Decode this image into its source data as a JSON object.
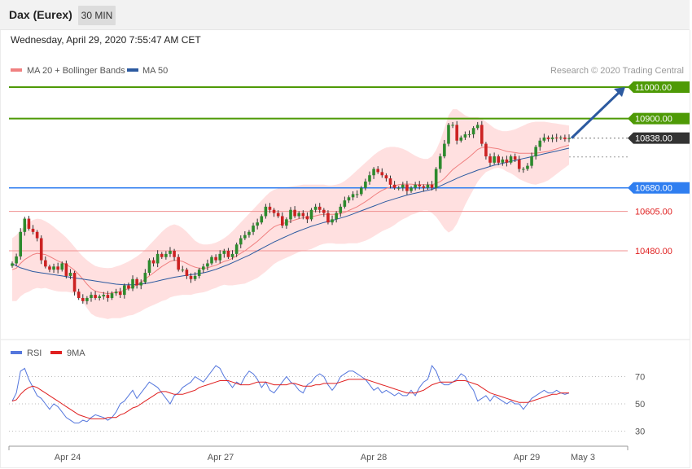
{
  "header": {
    "title": "Dax (Eurex)",
    "timeframe": "30 MIN"
  },
  "date_text": "Wednesday, April 29, 2020 7:55:47 AM CET",
  "legend": {
    "ma20": "MA 20 + Bollinger Bands",
    "ma50": "MA 50"
  },
  "credit": "Research © 2020 Trading Central",
  "rsi_legend": {
    "rsi": "RSI",
    "ma9": "9MA"
  },
  "colors": {
    "green": "#4e9a06",
    "blue": "#2f7ef0",
    "red": "#e02020",
    "up": "#2d8a2d",
    "down": "#cc2222",
    "band": "#ffd6d6",
    "ma20": "#f08080",
    "ma50": "#2c5aa0",
    "rsi": "#5577dd",
    "rsi_ma": "#e02020",
    "arrow": "#2c5aa0"
  },
  "chart_data": {
    "type": "candlestick",
    "title": "Dax (Eurex)",
    "timeframe": "30 MIN",
    "price_axis": [
      10400,
      11050
    ],
    "x_labels": [
      "Apr 24",
      "Apr 27",
      "Apr 28",
      "Apr 29",
      "May 3"
    ],
    "current_price": "10838.00",
    "levels": [
      {
        "label": "11000.00",
        "value": 11000,
        "style": "green-line"
      },
      {
        "label": "10900.00",
        "value": 10900,
        "style": "green-line"
      },
      {
        "label": "10838.00",
        "value": 10838,
        "style": "current-dotted"
      },
      {
        "label": "10680.00",
        "value": 10680,
        "style": "blue-line"
      },
      {
        "label": "10605.00",
        "value": 10605,
        "style": "red-line"
      },
      {
        "label": "10480.00",
        "value": 10480,
        "style": "red-line"
      }
    ],
    "projection": {
      "from": 10838,
      "to": 11000,
      "direction": "up"
    },
    "close_series": [
      10440,
      10462,
      10540,
      10582,
      10550,
      10540,
      10520,
      10450,
      10430,
      10420,
      10430,
      10420,
      10440,
      10400,
      10410,
      10350,
      10330,
      10320,
      10330,
      10340,
      10330,
      10335,
      10340,
      10330,
      10345,
      10350,
      10340,
      10370,
      10360,
      10390,
      10370,
      10380,
      10410,
      10450,
      10440,
      10470,
      10460,
      10470,
      10480,
      10460,
      10420,
      10420,
      10400,
      10390,
      10400,
      10420,
      10430,
      10440,
      10460,
      10450,
      10470,
      10480,
      10460,
      10470,
      10500,
      10520,
      10530,
      10540,
      10560,
      10570,
      10590,
      10620,
      10610,
      10600,
      10590,
      10560,
      10580,
      10610,
      10590,
      10600,
      10590,
      10580,
      10610,
      10620,
      10610,
      10600,
      10570,
      10580,
      10600,
      10620,
      10640,
      10650,
      10660,
      10660,
      10680,
      10700,
      10720,
      10740,
      10730,
      10720,
      10710,
      10690,
      10680,
      10680,
      10690,
      10670,
      10680,
      10690,
      10685,
      10680,
      10690,
      10680,
      10740,
      10780,
      10820,
      10880,
      10880,
      10830,
      10840,
      10850,
      10850,
      10870,
      10880,
      10820,
      10780,
      10760,
      10780,
      10760,
      10770,
      10760,
      10780,
      10770,
      10740,
      10740,
      10750,
      10780,
      10810,
      10830,
      10840,
      10835,
      10840,
      10838,
      10840,
      10835,
      10838
    ],
    "ma20": [
      10420,
      10425,
      10440,
      10452,
      10460,
      10468,
      10472,
      10470,
      10468,
      10462,
      10455,
      10448,
      10442,
      10436,
      10428,
      10418,
      10405,
      10390,
      10374,
      10360,
      10352,
      10348,
      10346,
      10344,
      10346,
      10348,
      10350,
      10355,
      10360,
      10365,
      10372,
      10380,
      10390,
      10400,
      10410,
      10420,
      10430,
      10438,
      10446,
      10450,
      10449,
      10446,
      10440,
      10433,
      10428,
      10425,
      10424,
      10426,
      10430,
      10434,
      10440,
      10446,
      10450,
      10456,
      10464,
      10472,
      10480,
      10490,
      10500,
      10510,
      10522,
      10534,
      10546,
      10556,
      10562,
      10566,
      10570,
      10574,
      10578,
      10582,
      10585,
      10586,
      10588,
      10591,
      10594,
      10596,
      10596,
      10596,
      10596,
      10598,
      10602,
      10608,
      10614,
      10620,
      10628,
      10636,
      10645,
      10655,
      10664,
      10672,
      10678,
      10682,
      10686,
      10690,
      10692,
      10692,
      10692,
      10690,
      10690,
      10690,
      10690,
      10690,
      10694,
      10700,
      10710,
      10724,
      10738,
      10748,
      10758,
      10768,
      10778,
      10790,
      10802,
      10808,
      10810,
      10808,
      10806,
      10804,
      10800,
      10796,
      10794,
      10792,
      10790,
      10790,
      10790,
      10790,
      10790,
      10792,
      10794,
      10796,
      10800,
      10804,
      10808,
      10812,
      10816
    ],
    "ma50": [
      10440,
      10432,
      10426,
      10422,
      10418,
      10414,
      10412,
      10410,
      10408,
      10406,
      10404,
      10402,
      10400,
      10398,
      10396,
      10394,
      10392,
      10390,
      10388,
      10386,
      10384,
      10382,
      10380,
      10378,
      10376,
      10374,
      10373,
      10372,
      10372,
      10372,
      10373,
      10374,
      10376,
      10378,
      10381,
      10384,
      10387,
      10390,
      10393,
      10396,
      10398,
      10400,
      10402,
      10404,
      10406,
      10408,
      10410,
      10413,
      10417,
      10421,
      10426,
      10431,
      10436,
      10442,
      10448,
      10454,
      10460,
      10466,
      10473,
      10480,
      10487,
      10494,
      10501,
      10508,
      10514,
      10520,
      10526,
      10532,
      10538,
      10543,
      10548,
      10553,
      10558,
      10562,
      10566,
      10570,
      10573,
      10576,
      10580,
      10584,
      10588,
      10592,
      10597,
      10602,
      10607,
      10612,
      10617,
      10622,
      10627,
      10632,
      10637,
      10641,
      10645,
      10649,
      10653,
      10657,
      10660,
      10663,
      10666,
      10669,
      10672,
      10675,
      10680,
      10686,
      10692,
      10698,
      10704,
      10710,
      10716,
      10721,
      10726,
      10731,
      10736,
      10740,
      10744,
      10748,
      10752,
      10755,
      10758,
      10761,
      10764,
      10767,
      10770,
      10773,
      10776,
      10779,
      10782,
      10785,
      10788,
      10791,
      10794,
      10797,
      10800,
      10803,
      10806
    ],
    "bands": {
      "upper": [
        10520,
        10530,
        10545,
        10560,
        10570,
        10578,
        10582,
        10580,
        10574,
        10566,
        10556,
        10545,
        10534,
        10522,
        10508,
        10492,
        10476,
        10462,
        10450,
        10440,
        10432,
        10428,
        10426,
        10425,
        10426,
        10430,
        10434,
        10440,
        10446,
        10454,
        10462,
        10472,
        10484,
        10498,
        10512,
        10526,
        10540,
        10552,
        10560,
        10564,
        10560,
        10552,
        10540,
        10526,
        10512,
        10504,
        10500,
        10500,
        10502,
        10506,
        10512,
        10520,
        10530,
        10542,
        10556,
        10570,
        10584,
        10598,
        10612,
        10626,
        10640,
        10654,
        10666,
        10674,
        10678,
        10680,
        10682,
        10684,
        10686,
        10688,
        10690,
        10690,
        10690,
        10690,
        10690,
        10690,
        10688,
        10688,
        10690,
        10694,
        10702,
        10712,
        10724,
        10736,
        10748,
        10760,
        10772,
        10784,
        10794,
        10802,
        10808,
        10810,
        10810,
        10808,
        10804,
        10798,
        10790,
        10782,
        10776,
        10772,
        10772,
        10780,
        10800,
        10830,
        10870,
        10910,
        10930,
        10930,
        10920,
        10910,
        10905,
        10905,
        10905,
        10900,
        10890,
        10880,
        10870,
        10864,
        10860,
        10860,
        10862,
        10866,
        10872,
        10878,
        10884,
        10888,
        10890,
        10890,
        10890,
        10888,
        10886,
        10884,
        10882,
        10880,
        10878
      ],
      "lower": [
        10320,
        10320,
        10335,
        10345,
        10350,
        10358,
        10362,
        10360,
        10362,
        10358,
        10354,
        10351,
        10350,
        10350,
        10348,
        10344,
        10334,
        10318,
        10298,
        10280,
        10272,
        10268,
        10266,
        10263,
        10266,
        10266,
        10266,
        10270,
        10274,
        10276,
        10282,
        10288,
        10296,
        10302,
        10308,
        10314,
        10320,
        10324,
        10332,
        10336,
        10338,
        10340,
        10340,
        10340,
        10344,
        10346,
        10348,
        10352,
        10358,
        10362,
        10368,
        10372,
        10370,
        10370,
        10372,
        10374,
        10376,
        10382,
        10388,
        10394,
        10404,
        10414,
        10426,
        10438,
        10446,
        10452,
        10458,
        10464,
        10470,
        10476,
        10480,
        10482,
        10486,
        10492,
        10498,
        10502,
        10504,
        10504,
        10502,
        10502,
        10502,
        10504,
        10504,
        10504,
        10508,
        10512,
        10518,
        10526,
        10534,
        10542,
        10548,
        10554,
        10562,
        10572,
        10580,
        10586,
        10594,
        10598,
        10604,
        10608,
        10608,
        10600,
        10588,
        10570,
        10550,
        10538,
        10546,
        10566,
        10596,
        10626,
        10651,
        10675,
        10699,
        10716,
        10730,
        10736,
        10742,
        10744,
        10740,
        10732,
        10726,
        10718,
        10708,
        10702,
        10696,
        10692,
        10690,
        10694,
        10698,
        10704,
        10714,
        10724,
        10734,
        10744,
        10754
      ]
    },
    "rsi": {
      "scale": [
        20,
        80
      ],
      "levels": [
        70,
        50,
        30
      ],
      "values": [
        52,
        58,
        74,
        76,
        68,
        62,
        56,
        54,
        50,
        46,
        50,
        48,
        44,
        40,
        38,
        36,
        36,
        38,
        37,
        40,
        42,
        41,
        40,
        38,
        40,
        44,
        50,
        52,
        56,
        60,
        54,
        58,
        62,
        66,
        64,
        62,
        58,
        54,
        50,
        56,
        58,
        62,
        64,
        66,
        70,
        68,
        66,
        70,
        74,
        78,
        76,
        70,
        66,
        62,
        66,
        64,
        70,
        74,
        72,
        68,
        62,
        66,
        60,
        58,
        62,
        66,
        70,
        66,
        64,
        60,
        58,
        64,
        66,
        70,
        72,
        70,
        64,
        60,
        64,
        70,
        72,
        74,
        74,
        72,
        70,
        68,
        64,
        60,
        62,
        58,
        60,
        58,
        56,
        58,
        56,
        56,
        60,
        56,
        62,
        66,
        68,
        78,
        74,
        66,
        64,
        64,
        66,
        68,
        72,
        70,
        64,
        60,
        52,
        54,
        56,
        52,
        56,
        54,
        52,
        50,
        52,
        50,
        50,
        46,
        50,
        54,
        56,
        58,
        60,
        58,
        58,
        60,
        58,
        57,
        58
      ],
      "ma9": [
        52,
        53,
        57,
        60,
        62,
        63,
        62,
        60,
        58,
        56,
        54,
        52,
        50,
        48,
        46,
        44,
        42,
        41,
        40,
        39,
        39,
        39,
        39,
        40,
        40,
        40,
        42,
        43,
        45,
        47,
        48,
        50,
        52,
        54,
        56,
        58,
        59,
        59,
        58,
        57,
        57,
        57,
        58,
        59,
        60,
        62,
        63,
        64,
        65,
        66,
        67,
        67,
        67,
        66,
        65,
        64,
        64,
        64,
        65,
        66,
        66,
        66,
        65,
        64,
        64,
        64,
        64,
        65,
        65,
        64,
        63,
        63,
        63,
        64,
        64,
        65,
        65,
        65,
        65,
        66,
        67,
        68,
        68,
        68,
        68,
        68,
        67,
        66,
        65,
        64,
        63,
        62,
        61,
        60,
        59,
        58,
        58,
        58,
        59,
        60,
        62,
        64,
        65,
        66,
        66,
        66,
        66,
        67,
        67,
        67,
        66,
        65,
        64,
        62,
        60,
        58,
        57,
        56,
        55,
        54,
        53,
        52,
        51,
        51,
        51,
        52,
        53,
        54,
        55,
        56,
        57,
        57,
        58,
        58,
        58
      ]
    }
  }
}
